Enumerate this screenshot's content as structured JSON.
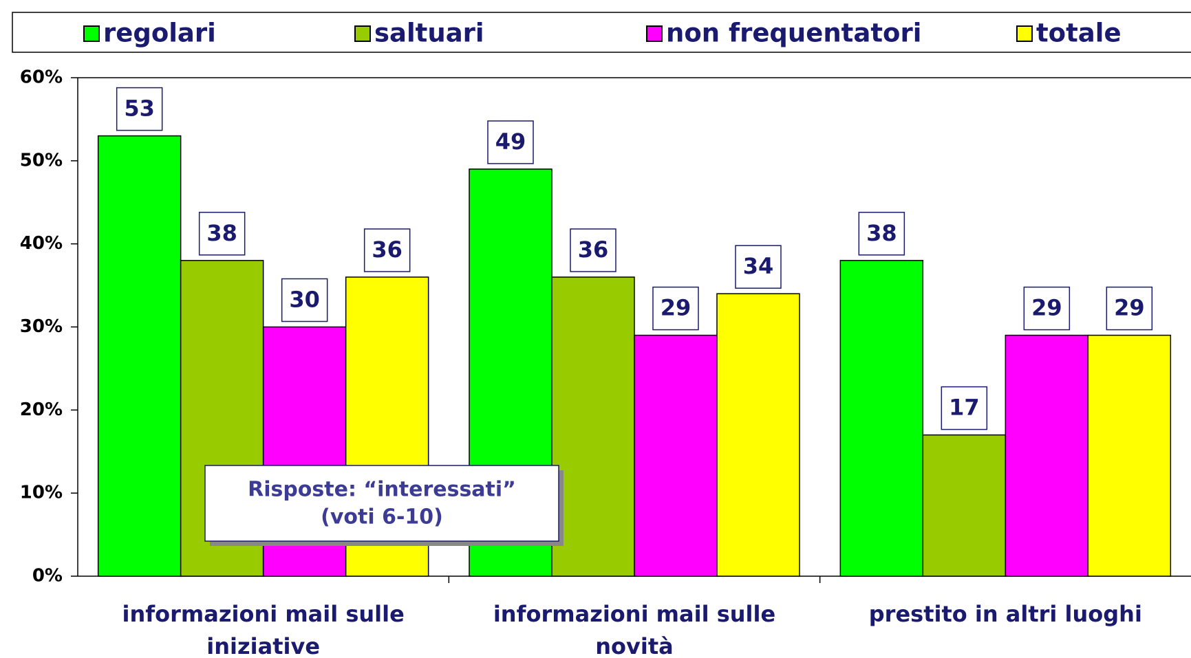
{
  "chart_data": {
    "type": "bar",
    "categories": [
      "informazioni mail sulle iniziative",
      "informazioni mail sulle novità",
      "prestito in altri luoghi"
    ],
    "series": [
      {
        "name": "regolari",
        "color": "#00ff00",
        "values": [
          53,
          49,
          38
        ]
      },
      {
        "name": "saltuari",
        "color": "#99cc00",
        "values": [
          38,
          36,
          17
        ]
      },
      {
        "name": "non frequentatori",
        "color": "#ff00ff",
        "values": [
          30,
          29,
          29
        ]
      },
      {
        "name": "totale",
        "color": "#ffff00",
        "values": [
          36,
          34,
          29
        ]
      }
    ],
    "ylim": [
      0,
      60
    ],
    "yticks": [
      {
        "value": 0,
        "label": "0%"
      },
      {
        "value": 10,
        "label": "10%"
      },
      {
        "value": 20,
        "label": "20%"
      },
      {
        "value": 30,
        "label": "30%"
      },
      {
        "value": 40,
        "label": "40%"
      },
      {
        "value": 50,
        "label": "50%"
      },
      {
        "value": 60,
        "label": "60%"
      }
    ],
    "annotation": [
      "Risposte: “interessati”",
      "(voti 6-10)"
    ],
    "legend_position": "top"
  }
}
